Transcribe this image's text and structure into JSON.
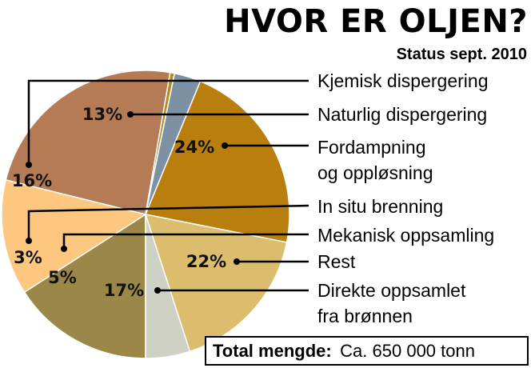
{
  "chart_data": {
    "type": "pie",
    "title": "HVOR ER OLJEN?",
    "subtitle": "Status sept. 2010",
    "slices": [
      {
        "label": "Kjemisk dispergering",
        "value": 16,
        "value_label": "16%",
        "color": "#9b8748"
      },
      {
        "label": "Naturlig dispergering",
        "value": 13,
        "value_label": "13%",
        "color": "#fec77f"
      },
      {
        "label": "Fordampning og oppløsning",
        "value": 24,
        "value_label": "24%",
        "color": "#b57b55"
      },
      {
        "label": "In situ brenning",
        "value": 0.5,
        "value_label": "",
        "color": "#b78a26"
      },
      {
        "label": "Mekanisk oppsamling",
        "value": 3,
        "value_label": "3%",
        "color": "#7d91a5"
      },
      {
        "label": "Rest",
        "value": 22,
        "value_label": "22%",
        "color": "#b87f0e"
      },
      {
        "label": "Direkte oppsamlet fra brønnen",
        "value": 17,
        "value_label": "17%",
        "color": "#dbbd6d"
      },
      {
        "label": "",
        "value": 5,
        "value_label": "5%",
        "color": "#cfd1c5"
      }
    ],
    "legend_lines": {
      "kjemisk": "Kjemisk dispergering",
      "naturlig": "Naturlig dispergering",
      "fordampning_1": "Fordampning",
      "fordampning_2": "og oppløsning",
      "in_situ": "In situ brenning",
      "mekanisk": "Mekanisk oppsamling",
      "rest": "Rest",
      "direkte_1": "Direkte oppsamlet",
      "direkte_2": "fra brønnen"
    },
    "total_label": "Total mengde:",
    "total_value": "Ca. 650 000 tonn"
  }
}
